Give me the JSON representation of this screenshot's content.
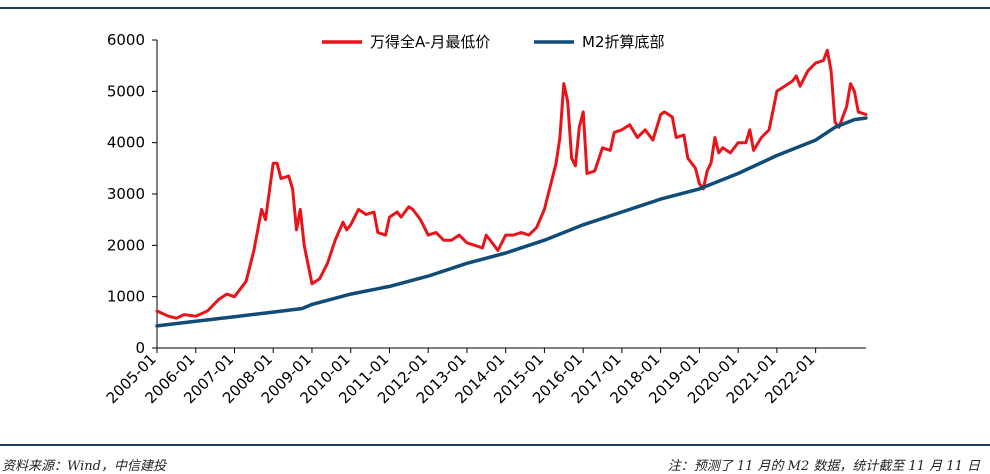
{
  "chart_data": {
    "type": "line",
    "title": "",
    "xlabel": "",
    "ylabel": "",
    "ylim": [
      0,
      6000
    ],
    "yticks": [
      0,
      1000,
      2000,
      3000,
      4000,
      5000,
      6000
    ],
    "xticks": [
      "2005-01",
      "2006-01",
      "2007-01",
      "2008-01",
      "2009-01",
      "2010-01",
      "2011-01",
      "2012-01",
      "2013-01",
      "2014-01",
      "2015-01",
      "2016-01",
      "2017-01",
      "2018-01",
      "2019-01",
      "2020-01",
      "2021-01",
      "2022-01"
    ],
    "legend_position": "top-center",
    "series": [
      {
        "name": "万得全A-月最低价",
        "color": "#e8141a",
        "points": [
          [
            2005.0,
            720
          ],
          [
            2005.3,
            620
          ],
          [
            2005.5,
            580
          ],
          [
            2005.7,
            650
          ],
          [
            2006.0,
            620
          ],
          [
            2006.3,
            720
          ],
          [
            2006.6,
            950
          ],
          [
            2006.8,
            1050
          ],
          [
            2007.0,
            1000
          ],
          [
            2007.3,
            1300
          ],
          [
            2007.5,
            1900
          ],
          [
            2007.7,
            2700
          ],
          [
            2007.8,
            2500
          ],
          [
            2008.0,
            3600
          ],
          [
            2008.1,
            3600
          ],
          [
            2008.2,
            3300
          ],
          [
            2008.4,
            3350
          ],
          [
            2008.5,
            3100
          ],
          [
            2008.6,
            2300
          ],
          [
            2008.7,
            2700
          ],
          [
            2008.8,
            2000
          ],
          [
            2009.0,
            1250
          ],
          [
            2009.2,
            1350
          ],
          [
            2009.4,
            1650
          ],
          [
            2009.6,
            2100
          ],
          [
            2009.8,
            2450
          ],
          [
            2009.9,
            2300
          ],
          [
            2010.0,
            2400
          ],
          [
            2010.2,
            2700
          ],
          [
            2010.4,
            2600
          ],
          [
            2010.6,
            2650
          ],
          [
            2010.7,
            2250
          ],
          [
            2010.9,
            2200
          ],
          [
            2011.0,
            2550
          ],
          [
            2011.2,
            2650
          ],
          [
            2011.3,
            2550
          ],
          [
            2011.5,
            2750
          ],
          [
            2011.6,
            2700
          ],
          [
            2011.8,
            2500
          ],
          [
            2012.0,
            2200
          ],
          [
            2012.2,
            2250
          ],
          [
            2012.4,
            2100
          ],
          [
            2012.6,
            2100
          ],
          [
            2012.8,
            2200
          ],
          [
            2013.0,
            2050
          ],
          [
            2013.2,
            2000
          ],
          [
            2013.4,
            1950
          ],
          [
            2013.5,
            2200
          ],
          [
            2013.7,
            2000
          ],
          [
            2013.8,
            1900
          ],
          [
            2014.0,
            2200
          ],
          [
            2014.2,
            2200
          ],
          [
            2014.4,
            2250
          ],
          [
            2014.6,
            2200
          ],
          [
            2014.8,
            2350
          ],
          [
            2015.0,
            2700
          ],
          [
            2015.2,
            3300
          ],
          [
            2015.3,
            3600
          ],
          [
            2015.4,
            4100
          ],
          [
            2015.5,
            5150
          ],
          [
            2015.6,
            4800
          ],
          [
            2015.7,
            3700
          ],
          [
            2015.8,
            3550
          ],
          [
            2015.9,
            4300
          ],
          [
            2016.0,
            4600
          ],
          [
            2016.1,
            3400
          ],
          [
            2016.3,
            3450
          ],
          [
            2016.5,
            3900
          ],
          [
            2016.7,
            3850
          ],
          [
            2016.8,
            4200
          ],
          [
            2017.0,
            4250
          ],
          [
            2017.2,
            4350
          ],
          [
            2017.4,
            4100
          ],
          [
            2017.6,
            4250
          ],
          [
            2017.8,
            4050
          ],
          [
            2018.0,
            4550
          ],
          [
            2018.1,
            4600
          ],
          [
            2018.3,
            4500
          ],
          [
            2018.4,
            4100
          ],
          [
            2018.6,
            4150
          ],
          [
            2018.7,
            3700
          ],
          [
            2018.9,
            3500
          ],
          [
            2019.0,
            3200
          ],
          [
            2019.1,
            3100
          ],
          [
            2019.2,
            3450
          ],
          [
            2019.3,
            3600
          ],
          [
            2019.4,
            4100
          ],
          [
            2019.5,
            3800
          ],
          [
            2019.6,
            3900
          ],
          [
            2019.8,
            3800
          ],
          [
            2020.0,
            4000
          ],
          [
            2020.2,
            4000
          ],
          [
            2020.3,
            4250
          ],
          [
            2020.4,
            3850
          ],
          [
            2020.6,
            4100
          ],
          [
            2020.8,
            4250
          ],
          [
            2021.0,
            5000
          ],
          [
            2021.2,
            5100
          ],
          [
            2021.4,
            5200
          ],
          [
            2021.5,
            5300
          ],
          [
            2021.6,
            5100
          ],
          [
            2021.8,
            5400
          ],
          [
            2022.0,
            5550
          ],
          [
            2022.2,
            5600
          ],
          [
            2022.3,
            5800
          ],
          [
            2022.4,
            5400
          ],
          [
            2022.5,
            4400
          ],
          [
            2022.6,
            4300
          ],
          [
            2022.8,
            4700
          ],
          [
            2022.9,
            5150
          ],
          [
            2023.0,
            5000
          ],
          [
            2023.1,
            4600
          ],
          [
            2023.3,
            4550
          ]
        ]
      },
      {
        "name": "M2折算底部",
        "color": "#0f4c78",
        "points": [
          [
            2005.0,
            430
          ],
          [
            2006.0,
            520
          ],
          [
            2007.0,
            610
          ],
          [
            2008.0,
            700
          ],
          [
            2008.75,
            770
          ],
          [
            2009.0,
            850
          ],
          [
            2010.0,
            1050
          ],
          [
            2011.0,
            1200
          ],
          [
            2012.0,
            1400
          ],
          [
            2013.0,
            1650
          ],
          [
            2014.0,
            1850
          ],
          [
            2015.0,
            2100
          ],
          [
            2016.0,
            2400
          ],
          [
            2017.0,
            2650
          ],
          [
            2018.0,
            2900
          ],
          [
            2019.0,
            3100
          ],
          [
            2020.0,
            3400
          ],
          [
            2021.0,
            3750
          ],
          [
            2022.0,
            4050
          ],
          [
            2022.5,
            4300
          ],
          [
            2023.0,
            4450
          ],
          [
            2023.3,
            4480
          ]
        ]
      }
    ],
    "x_range": [
      2005.0,
      2023.3
    ]
  },
  "footer": {
    "source": "资料来源：Wind，中信建投",
    "note": "注：预测了 11 月的 M2 数据，统计截至 11 月 11 日"
  }
}
